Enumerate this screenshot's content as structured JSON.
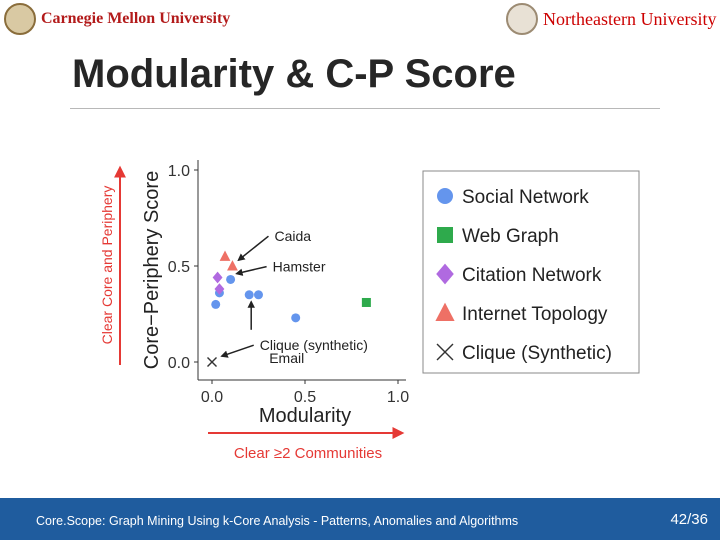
{
  "header": {
    "left_logo_text": "Carnegie Mellon University",
    "right_logo_text": "Northeastern University"
  },
  "slide": {
    "title": "Modularity & C-P Score"
  },
  "footer": {
    "text": "Core.Scope: Graph Mining Using k-Core Analysis - Patterns, Anomalies and Algorithms",
    "page": "42/36"
  },
  "colors": {
    "social": "#6495ed",
    "web": "#2eaa4c",
    "citation": "#b06ae0",
    "internet": "#ee7065",
    "clique": "#333333",
    "red_arrow": "#e53935",
    "footer_bg": "#1f5c9e"
  },
  "chart_data": {
    "type": "scatter",
    "xlabel": "Modularity",
    "ylabel": "Core−Periphery Score",
    "xlim": [
      0.0,
      1.0
    ],
    "ylim": [
      0.0,
      1.0
    ],
    "xticks": [
      "0.0",
      "0.5",
      "1.0"
    ],
    "yticks": [
      "0.0",
      "0.5",
      "1.0"
    ],
    "x_arrow_label": "Clear ≥2 Communities",
    "y_arrow_label": "Clear Core and Periphery",
    "legend_position": "right",
    "series": [
      {
        "name": "Social Network",
        "marker": "circle",
        "points": [
          [
            0.02,
            0.3
          ],
          [
            0.04,
            0.36
          ],
          [
            0.1,
            0.43
          ],
          [
            0.2,
            0.35
          ],
          [
            0.25,
            0.35
          ],
          [
            0.45,
            0.23
          ]
        ]
      },
      {
        "name": "Web Graph",
        "marker": "square",
        "points": [
          [
            0.83,
            0.31
          ]
        ]
      },
      {
        "name": "Citation Network",
        "marker": "diamond",
        "points": [
          [
            0.03,
            0.44
          ],
          [
            0.04,
            0.38
          ]
        ]
      },
      {
        "name": "Internet Topology",
        "marker": "triangle",
        "points": [
          [
            0.07,
            0.55
          ],
          [
            0.11,
            0.5
          ]
        ]
      },
      {
        "name": "Clique (Synthetic)",
        "marker": "x",
        "points": [
          [
            0.0,
            0.0
          ]
        ]
      }
    ],
    "annotations": [
      {
        "text": "Caida",
        "target": [
          0.11,
          0.52
        ]
      },
      {
        "text": "Hamster",
        "target": [
          0.1,
          0.45
        ]
      },
      {
        "text": "Email",
        "target": [
          0.2,
          0.35
        ]
      },
      {
        "text": "Clique (synthetic)",
        "target": [
          0.02,
          0.02
        ]
      }
    ]
  }
}
